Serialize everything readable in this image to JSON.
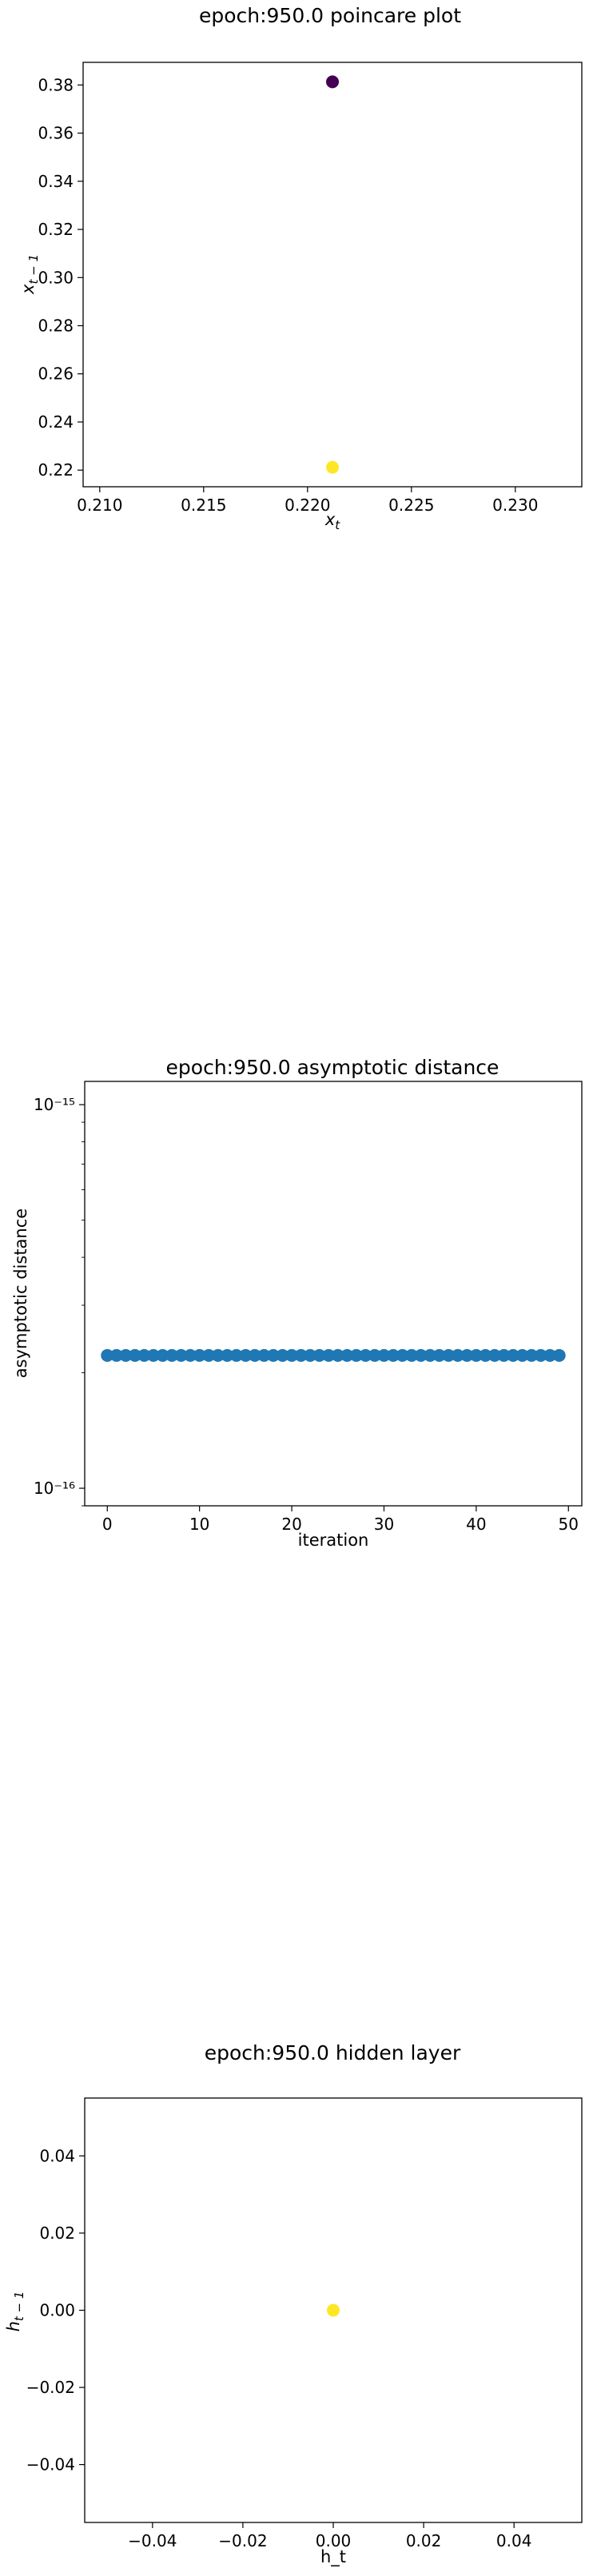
{
  "colors": {
    "purple": "#440154",
    "yellow": "#fde725",
    "blue": "#1f77b4"
  },
  "chart_data": [
    {
      "type": "scatter",
      "title": "epoch:950.0 poincare plot",
      "xlabel": "x_t",
      "ylabel": "x_{t-1}",
      "xlim": [
        0.2092,
        0.2332
      ],
      "ylim": [
        0.2131,
        0.3894
      ],
      "xticks": [
        0.21,
        0.215,
        0.22,
        0.225,
        0.23
      ],
      "xtick_labels": [
        "0.210",
        "0.215",
        "0.220",
        "0.225",
        "0.230"
      ],
      "yticks": [
        0.22,
        0.24,
        0.26,
        0.28,
        0.3,
        0.32,
        0.34,
        0.36,
        0.38
      ],
      "ytick_labels": [
        "0.22",
        "0.24",
        "0.26",
        "0.28",
        "0.30",
        "0.32",
        "0.34",
        "0.36",
        "0.38"
      ],
      "grid": false,
      "points": [
        {
          "x": 0.2212,
          "y": 0.3813,
          "color": "#440154"
        },
        {
          "x": 0.2212,
          "y": 0.2212,
          "color": "#fde725"
        }
      ]
    },
    {
      "type": "scatter",
      "title": "epoch:950.0 asymptotic distance",
      "xlabel": "iteration",
      "ylabel": "asymptotic distance",
      "yscale": "log",
      "xlim": [
        -2.45,
        51.45
      ],
      "ylim": [
        9e-17,
        1.15e-15
      ],
      "xticks": [
        0,
        10,
        20,
        30,
        40,
        50
      ],
      "xtick_labels": [
        "0",
        "10",
        "20",
        "30",
        "40",
        "50"
      ],
      "yticks": [
        1e-16,
        1e-15
      ],
      "ytick_labels": [
        "10⁻¹⁶",
        "10⁻¹⁵"
      ],
      "grid": false,
      "series": [
        {
          "color": "#1f77b4",
          "x": [
            0,
            1,
            2,
            3,
            4,
            5,
            6,
            7,
            8,
            9,
            10,
            11,
            12,
            13,
            14,
            15,
            16,
            17,
            18,
            19,
            20,
            21,
            22,
            23,
            24,
            25,
            26,
            27,
            28,
            29,
            30,
            31,
            32,
            33,
            34,
            35,
            36,
            37,
            38,
            39,
            40,
            41,
            42,
            43,
            44,
            45,
            46,
            47,
            48,
            49
          ],
          "y": [
            2.22e-16,
            2.22e-16,
            2.22e-16,
            2.22e-16,
            2.22e-16,
            2.22e-16,
            2.22e-16,
            2.22e-16,
            2.22e-16,
            2.22e-16,
            2.22e-16,
            2.22e-16,
            2.22e-16,
            2.22e-16,
            2.22e-16,
            2.22e-16,
            2.22e-16,
            2.22e-16,
            2.22e-16,
            2.22e-16,
            2.22e-16,
            2.22e-16,
            2.22e-16,
            2.22e-16,
            2.22e-16,
            2.22e-16,
            2.22e-16,
            2.22e-16,
            2.22e-16,
            2.22e-16,
            2.22e-16,
            2.22e-16,
            2.22e-16,
            2.22e-16,
            2.22e-16,
            2.22e-16,
            2.22e-16,
            2.22e-16,
            2.22e-16,
            2.22e-16,
            2.22e-16,
            2.22e-16,
            2.22e-16,
            2.22e-16,
            2.22e-16,
            2.22e-16,
            2.22e-16,
            2.22e-16,
            2.22e-16,
            2.22e-16
          ]
        }
      ]
    },
    {
      "type": "scatter",
      "title": "epoch:950.0 hidden layer",
      "xlabel": "h_t",
      "ylabel": "h_{t-1}",
      "xlim": [
        -0.055,
        0.055
      ],
      "ylim": [
        -0.055,
        0.055
      ],
      "xticks": [
        -0.04,
        -0.02,
        0.0,
        0.02,
        0.04
      ],
      "xtick_labels": [
        "−0.04",
        "−0.02",
        "0.00",
        "0.02",
        "0.04"
      ],
      "yticks": [
        -0.04,
        -0.02,
        0.0,
        0.02,
        0.04
      ],
      "ytick_labels": [
        "−0.04",
        "−0.02",
        "0.00",
        "0.02",
        "0.04"
      ],
      "grid": false,
      "points": [
        {
          "x": 0.0,
          "y": 0.0,
          "color": "#fde725"
        }
      ]
    }
  ]
}
